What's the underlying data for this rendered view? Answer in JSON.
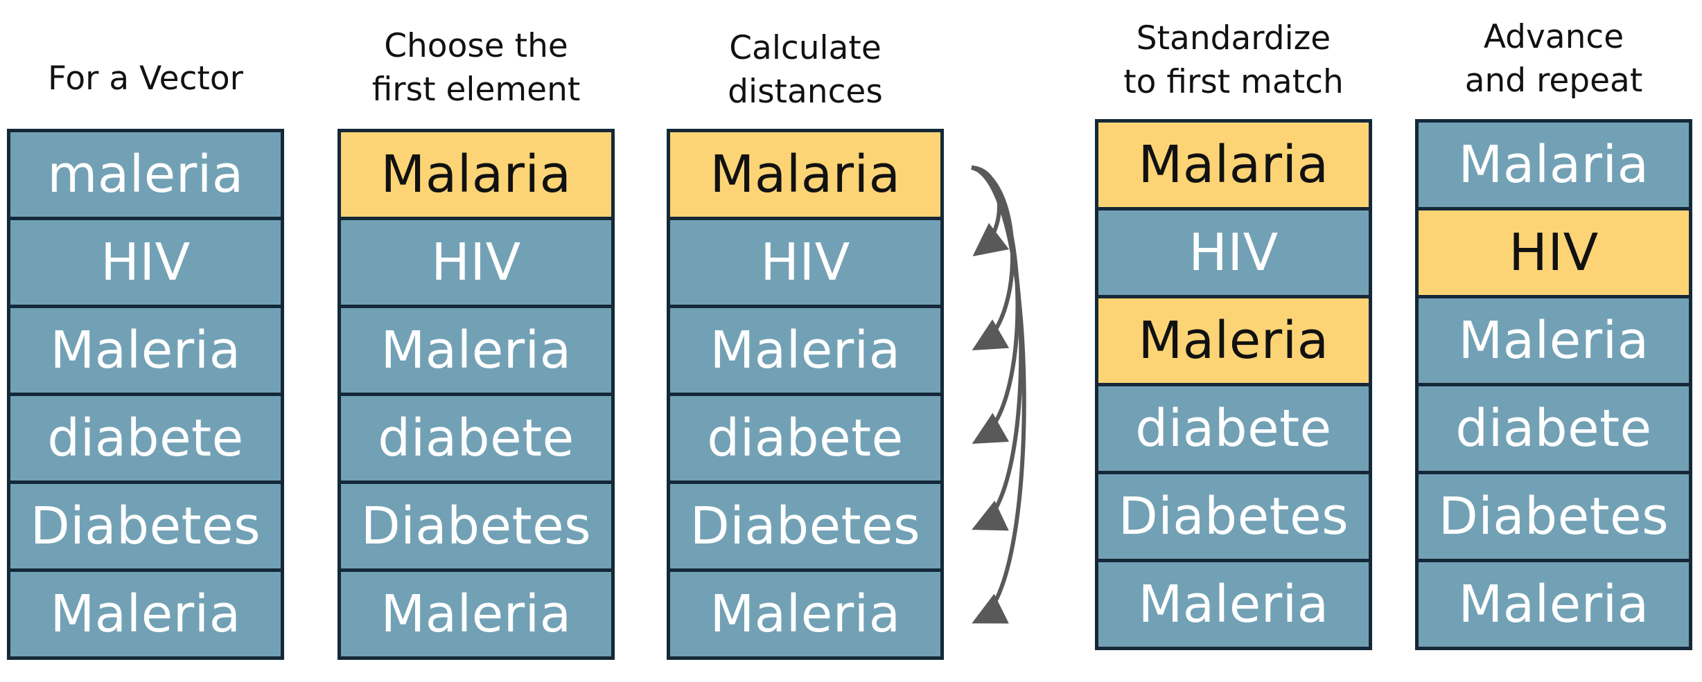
{
  "columns": [
    {
      "title": "For a Vector",
      "items": [
        {
          "label": "maleria",
          "highlight": false
        },
        {
          "label": "HIV",
          "highlight": false
        },
        {
          "label": "Maleria",
          "highlight": false
        },
        {
          "label": "diabete",
          "highlight": false
        },
        {
          "label": "Diabetes",
          "highlight": false
        },
        {
          "label": "Maleria",
          "highlight": false
        }
      ]
    },
    {
      "title": "Choose the\nfirst element",
      "items": [
        {
          "label": "Malaria",
          "highlight": true
        },
        {
          "label": "HIV",
          "highlight": false
        },
        {
          "label": "Maleria",
          "highlight": false
        },
        {
          "label": "diabete",
          "highlight": false
        },
        {
          "label": "Diabetes",
          "highlight": false
        },
        {
          "label": "Maleria",
          "highlight": false
        }
      ]
    },
    {
      "title": "Calculate\ndistances",
      "items": [
        {
          "label": "Malaria",
          "highlight": true
        },
        {
          "label": "HIV",
          "highlight": false
        },
        {
          "label": "Maleria",
          "highlight": false
        },
        {
          "label": "diabete",
          "highlight": false
        },
        {
          "label": "Diabetes",
          "highlight": false
        },
        {
          "label": "Maleria",
          "highlight": false
        }
      ]
    },
    {
      "title": "Standardize\nto first match",
      "items": [
        {
          "label": "Malaria",
          "highlight": true
        },
        {
          "label": "HIV",
          "highlight": false
        },
        {
          "label": "Maleria",
          "highlight": true
        },
        {
          "label": "diabete",
          "highlight": false
        },
        {
          "label": "Diabetes",
          "highlight": false
        },
        {
          "label": "Maleria",
          "highlight": false
        }
      ]
    },
    {
      "title": "Advance\nand repeat",
      "items": [
        {
          "label": "Malaria",
          "highlight": false
        },
        {
          "label": "HIV",
          "highlight": true
        },
        {
          "label": "Maleria",
          "highlight": false
        },
        {
          "label": "diabete",
          "highlight": false
        },
        {
          "label": "Diabetes",
          "highlight": false
        },
        {
          "label": "Maleria",
          "highlight": false
        }
      ]
    }
  ],
  "colors": {
    "cell": "#72a1b5",
    "highlight": "#fdd475",
    "border": "#142838",
    "arrow": "#595959"
  }
}
